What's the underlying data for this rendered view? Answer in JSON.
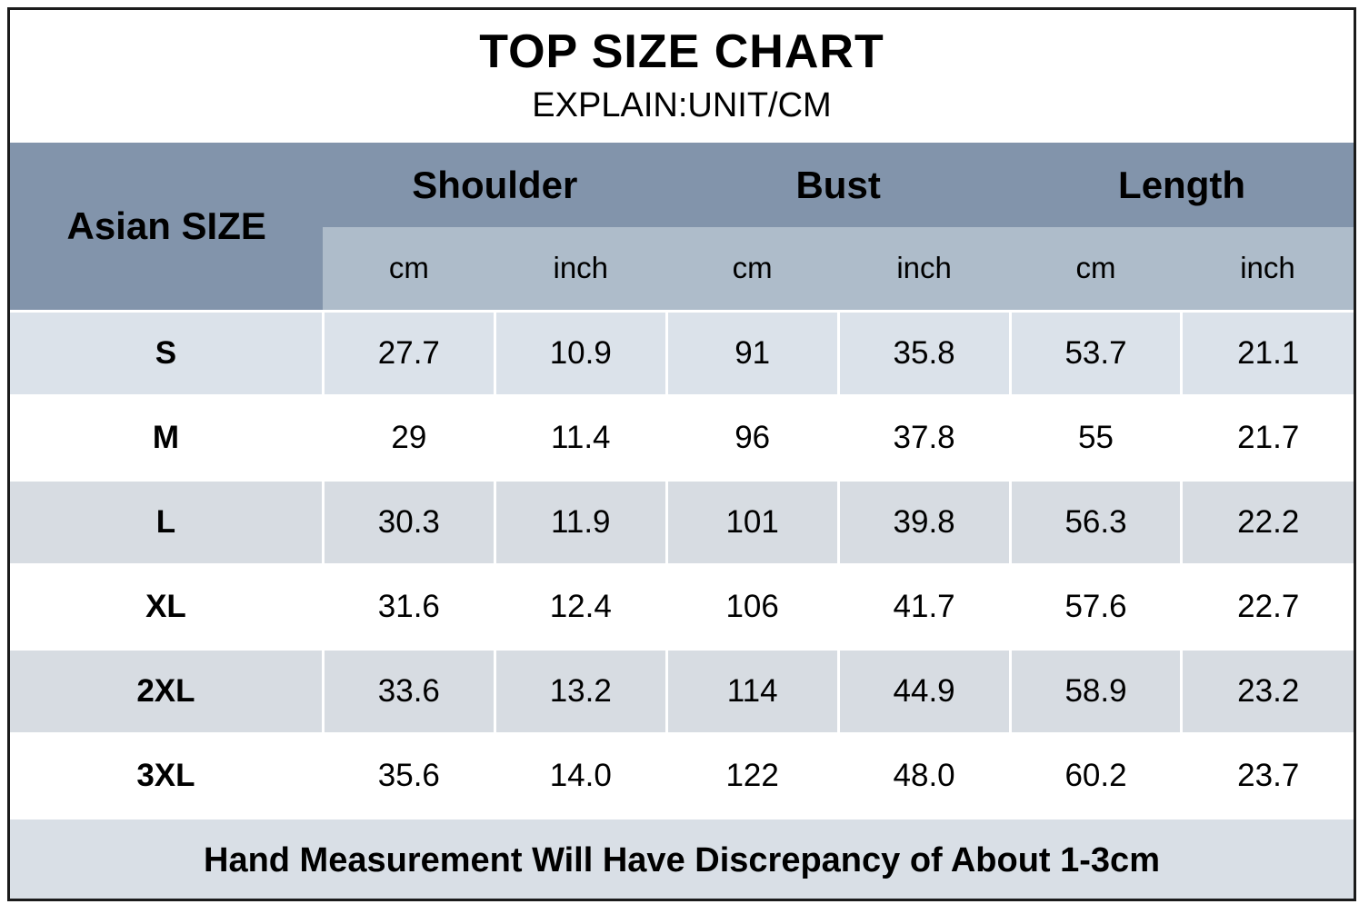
{
  "chart_data": {
    "type": "table",
    "title": "TOP SIZE CHART",
    "subtitle": "EXPLAIN:UNIT/CM",
    "size_header": "Asian SIZE",
    "measure_groups": [
      "Shoulder",
      "Bust",
      "Length"
    ],
    "unit_row": [
      "cm",
      "inch",
      "cm",
      "inch",
      "cm",
      "inch"
    ],
    "rows": [
      {
        "size": "S",
        "values": [
          "27.7",
          "10.9",
          "91",
          "35.8",
          "53.7",
          "21.1"
        ]
      },
      {
        "size": "M",
        "values": [
          "29",
          "11.4",
          "96",
          "37.8",
          "55",
          "21.7"
        ]
      },
      {
        "size": "L",
        "values": [
          "30.3",
          "11.9",
          "101",
          "39.8",
          "56.3",
          "22.2"
        ]
      },
      {
        "size": "XL",
        "values": [
          "31.6",
          "12.4",
          "106",
          "41.7",
          "57.6",
          "22.7"
        ]
      },
      {
        "size": "2XL",
        "values": [
          "33.6",
          "13.2",
          "114",
          "44.9",
          "58.9",
          "23.2"
        ]
      },
      {
        "size": "3XL",
        "values": [
          "35.6",
          "14.0",
          "122",
          "48.0",
          "60.2",
          "23.7"
        ]
      }
    ],
    "footnote": "Hand Measurement Will Have Discrepancy of About 1-3cm",
    "legend_position": "none",
    "grid": "white-cell-separators"
  },
  "colors": {
    "group_header_bg": "#8294ab",
    "unit_header_bg": "#aebcca",
    "row_tint_blue": "#dbe2ea",
    "row_tint_gray": "#d7dce2",
    "row_white": "#ffffff",
    "footer_bg": "#d9dfe6",
    "border": "#1b1b1b",
    "text": "#000000"
  }
}
